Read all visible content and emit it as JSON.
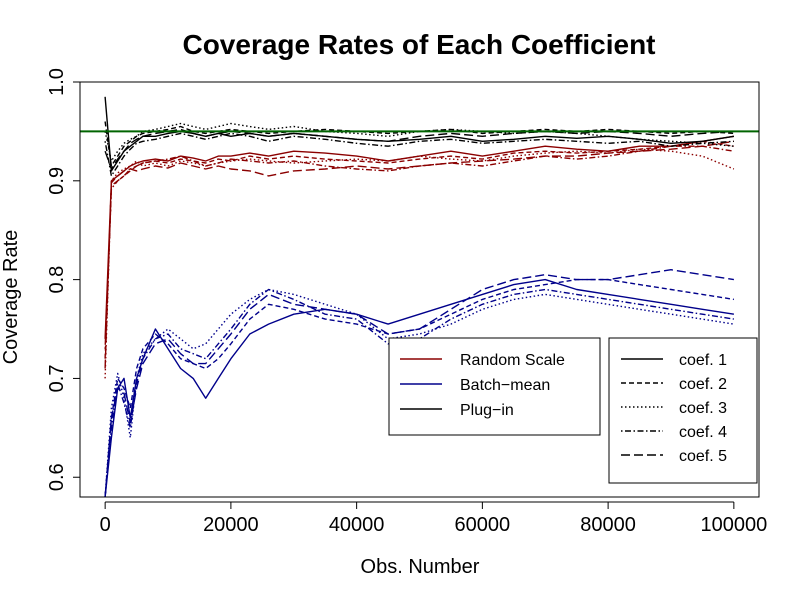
{
  "chart_data": {
    "type": "line",
    "title": "Coverage Rates of Each Coefficient",
    "xlabel": "Obs. Number",
    "ylabel": "Coverage Rate",
    "xlim": [
      -4000,
      104000
    ],
    "ylim": [
      0.58,
      1.0
    ],
    "xticks": [
      "0",
      "20000",
      "40000",
      "60000",
      "80000",
      "100000"
    ],
    "xtick_values": [
      0,
      20000,
      40000,
      60000,
      80000,
      100000
    ],
    "yticks": [
      "0.6",
      "0.7",
      "0.8",
      "0.9",
      "1.0"
    ],
    "ytick_values": [
      0.6,
      0.7,
      0.8,
      0.9,
      1.0
    ],
    "grid": false,
    "reference_line": {
      "y": 0.95,
      "color": "#006400"
    },
    "methods": [
      {
        "name": "Random Scale",
        "color": "#8B0000"
      },
      {
        "name": "Batch−mean",
        "color": "#00008B"
      },
      {
        "name": "Plug−in",
        "color": "#000000"
      }
    ],
    "coefficients": [
      {
        "name": "coef. 1",
        "dash": "solid"
      },
      {
        "name": "coef. 2",
        "dash": "dashed"
      },
      {
        "name": "coef. 3",
        "dash": "dotted"
      },
      {
        "name": "coef. 4",
        "dash": "dotdash"
      },
      {
        "name": "coef. 5",
        "dash": "longdash"
      }
    ],
    "x": [
      0,
      1000,
      2000,
      3000,
      4000,
      5000,
      6000,
      8000,
      10000,
      12000,
      14000,
      16000,
      18000,
      20000,
      23000,
      26000,
      30000,
      35000,
      40000,
      45000,
      50000,
      55000,
      60000,
      65000,
      70000,
      75000,
      80000,
      85000,
      90000,
      95000,
      100000
    ],
    "series": [
      {
        "method": "Random Scale",
        "coef": "coef. 1",
        "values": [
          0.74,
          0.9,
          0.905,
          0.91,
          0.915,
          0.918,
          0.92,
          0.922,
          0.92,
          0.925,
          0.923,
          0.92,
          0.925,
          0.925,
          0.928,
          0.925,
          0.93,
          0.928,
          0.925,
          0.92,
          0.925,
          0.93,
          0.925,
          0.93,
          0.935,
          0.932,
          0.93,
          0.935,
          0.935,
          0.94,
          0.945
        ]
      },
      {
        "method": "Random Scale",
        "coef": "coef. 2",
        "values": [
          0.72,
          0.895,
          0.9,
          0.905,
          0.91,
          0.915,
          0.918,
          0.92,
          0.918,
          0.922,
          0.92,
          0.918,
          0.922,
          0.92,
          0.925,
          0.922,
          0.925,
          0.922,
          0.92,
          0.918,
          0.922,
          0.925,
          0.922,
          0.928,
          0.93,
          0.928,
          0.93,
          0.932,
          0.935,
          0.94,
          0.935
        ]
      },
      {
        "method": "Random Scale",
        "coef": "coef. 3",
        "values": [
          0.7,
          0.9,
          0.908,
          0.912,
          0.915,
          0.92,
          0.915,
          0.918,
          0.915,
          0.92,
          0.918,
          0.915,
          0.918,
          0.92,
          0.922,
          0.92,
          0.918,
          0.92,
          0.922,
          0.92,
          0.925,
          0.922,
          0.92,
          0.925,
          0.928,
          0.93,
          0.928,
          0.932,
          0.93,
          0.925,
          0.912
        ]
      },
      {
        "method": "Random Scale",
        "coef": "coef. 4",
        "values": [
          0.73,
          0.892,
          0.9,
          0.905,
          0.912,
          0.915,
          0.918,
          0.92,
          0.922,
          0.925,
          0.92,
          0.915,
          0.918,
          0.922,
          0.92,
          0.918,
          0.92,
          0.915,
          0.912,
          0.91,
          0.915,
          0.918,
          0.915,
          0.92,
          0.925,
          0.922,
          0.925,
          0.93,
          0.935,
          0.935,
          0.93
        ]
      },
      {
        "method": "Random Scale",
        "coef": "coef. 5",
        "values": [
          0.71,
          0.898,
          0.905,
          0.91,
          0.912,
          0.91,
          0.912,
          0.915,
          0.913,
          0.918,
          0.915,
          0.912,
          0.915,
          0.912,
          0.91,
          0.905,
          0.91,
          0.912,
          0.915,
          0.912,
          0.915,
          0.918,
          0.92,
          0.922,
          0.925,
          0.925,
          0.928,
          0.93,
          0.932,
          0.935,
          0.94
        ]
      },
      {
        "method": "Batch−mean",
        "coef": "coef. 1",
        "values": [
          0.58,
          0.64,
          0.69,
          0.7,
          0.66,
          0.7,
          0.72,
          0.75,
          0.73,
          0.71,
          0.7,
          0.68,
          0.7,
          0.72,
          0.745,
          0.755,
          0.765,
          0.77,
          0.765,
          0.755,
          0.765,
          0.775,
          0.785,
          0.795,
          0.8,
          0.79,
          0.785,
          0.78,
          0.775,
          0.77,
          0.765
        ]
      },
      {
        "method": "Batch−mean",
        "coef": "coef. 2",
        "values": [
          0.58,
          0.66,
          0.7,
          0.69,
          0.67,
          0.71,
          0.73,
          0.745,
          0.735,
          0.72,
          0.715,
          0.71,
          0.72,
          0.735,
          0.76,
          0.775,
          0.77,
          0.76,
          0.755,
          0.745,
          0.75,
          0.765,
          0.78,
          0.79,
          0.795,
          0.8,
          0.8,
          0.795,
          0.79,
          0.785,
          0.78
        ]
      },
      {
        "method": "Batch−mean",
        "coef": "coef. 3",
        "values": [
          0.58,
          0.67,
          0.705,
          0.68,
          0.64,
          0.7,
          0.725,
          0.74,
          0.75,
          0.74,
          0.73,
          0.735,
          0.75,
          0.765,
          0.78,
          0.79,
          0.785,
          0.775,
          0.765,
          0.74,
          0.745,
          0.755,
          0.77,
          0.78,
          0.785,
          0.78,
          0.775,
          0.77,
          0.765,
          0.76,
          0.755
        ]
      },
      {
        "method": "Batch−mean",
        "coef": "coef. 4",
        "values": [
          0.58,
          0.65,
          0.695,
          0.675,
          0.65,
          0.695,
          0.72,
          0.74,
          0.745,
          0.73,
          0.725,
          0.72,
          0.735,
          0.75,
          0.775,
          0.79,
          0.78,
          0.765,
          0.76,
          0.735,
          0.74,
          0.76,
          0.775,
          0.785,
          0.79,
          0.785,
          0.78,
          0.775,
          0.77,
          0.765,
          0.76
        ]
      },
      {
        "method": "Batch−mean",
        "coef": "coef. 5",
        "values": [
          0.58,
          0.66,
          0.69,
          0.685,
          0.655,
          0.69,
          0.715,
          0.735,
          0.74,
          0.725,
          0.715,
          0.715,
          0.73,
          0.745,
          0.77,
          0.785,
          0.775,
          0.77,
          0.765,
          0.745,
          0.75,
          0.77,
          0.79,
          0.8,
          0.805,
          0.8,
          0.8,
          0.805,
          0.81,
          0.805,
          0.8
        ]
      },
      {
        "method": "Plug−in",
        "coef": "coef. 1",
        "values": [
          0.985,
          0.91,
          0.92,
          0.93,
          0.935,
          0.94,
          0.945,
          0.945,
          0.948,
          0.95,
          0.948,
          0.945,
          0.948,
          0.945,
          0.948,
          0.945,
          0.948,
          0.945,
          0.942,
          0.94,
          0.942,
          0.945,
          0.94,
          0.942,
          0.945,
          0.943,
          0.945,
          0.942,
          0.938,
          0.94,
          0.945
        ]
      },
      {
        "method": "Plug−in",
        "coef": "coef. 2",
        "values": [
          0.96,
          0.915,
          0.925,
          0.935,
          0.94,
          0.945,
          0.948,
          0.95,
          0.952,
          0.955,
          0.95,
          0.948,
          0.95,
          0.952,
          0.95,
          0.948,
          0.95,
          0.952,
          0.95,
          0.948,
          0.95,
          0.952,
          0.948,
          0.95,
          0.952,
          0.95,
          0.952,
          0.95,
          0.948,
          0.95,
          0.948
        ]
      },
      {
        "method": "Plug−in",
        "coef": "coef. 3",
        "values": [
          0.95,
          0.92,
          0.93,
          0.938,
          0.942,
          0.945,
          0.95,
          0.952,
          0.955,
          0.958,
          0.955,
          0.952,
          0.955,
          0.958,
          0.955,
          0.952,
          0.955,
          0.95,
          0.948,
          0.945,
          0.95,
          0.952,
          0.95,
          0.948,
          0.95,
          0.948,
          0.945,
          0.942,
          0.94,
          0.938,
          0.935
        ]
      },
      {
        "method": "Plug−in",
        "coef": "coef. 4",
        "values": [
          0.94,
          0.905,
          0.915,
          0.925,
          0.932,
          0.938,
          0.94,
          0.942,
          0.945,
          0.948,
          0.945,
          0.942,
          0.945,
          0.948,
          0.945,
          0.94,
          0.945,
          0.942,
          0.938,
          0.935,
          0.94,
          0.942,
          0.938,
          0.94,
          0.942,
          0.94,
          0.938,
          0.94,
          0.935,
          0.938,
          0.94
        ]
      },
      {
        "method": "Plug−in",
        "coef": "coef. 5",
        "values": [
          0.93,
          0.912,
          0.922,
          0.93,
          0.938,
          0.942,
          0.945,
          0.948,
          0.95,
          0.952,
          0.948,
          0.945,
          0.948,
          0.95,
          0.948,
          0.945,
          0.948,
          0.945,
          0.942,
          0.94,
          0.945,
          0.948,
          0.945,
          0.948,
          0.95,
          0.948,
          0.95,
          0.948,
          0.945,
          0.948,
          0.95
        ]
      }
    ]
  }
}
